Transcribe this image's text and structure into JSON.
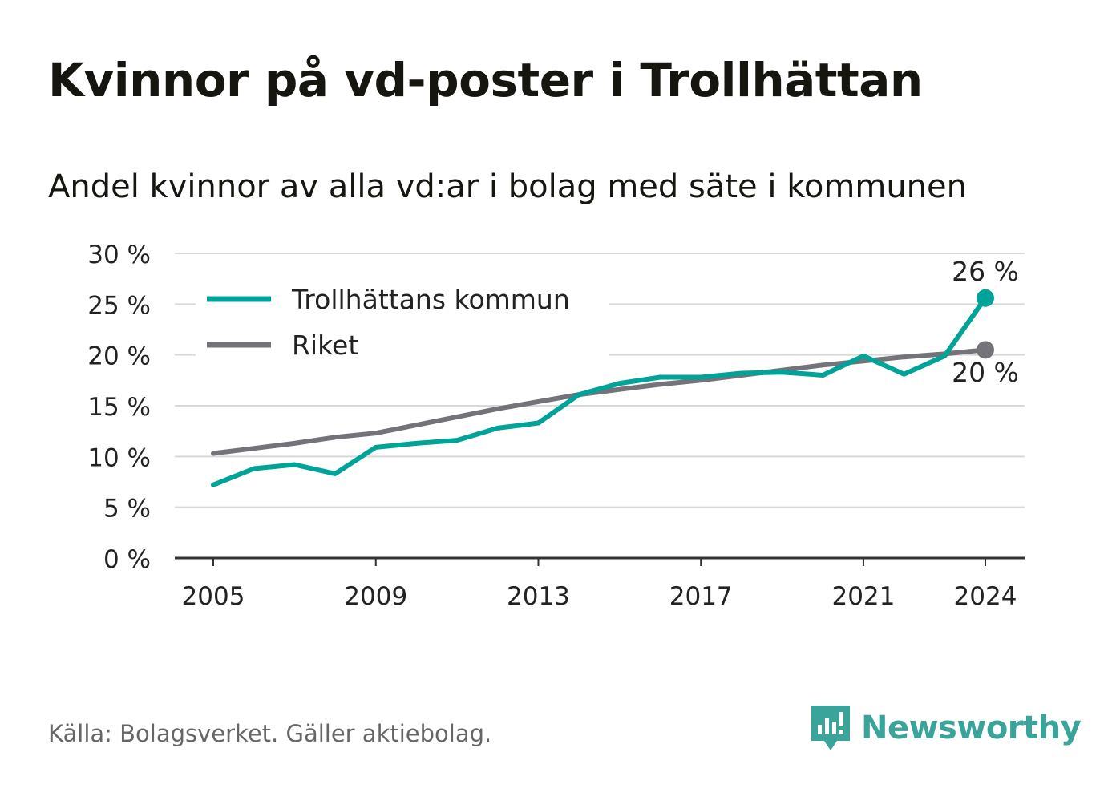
{
  "title": "Kvinnor på vd-poster i Trollhättan",
  "subtitle": "Andel kvinnor av alla vd:ar i bolag med säte i kommunen",
  "source": "Källa: Bolagsverket. Gäller aktiebolag.",
  "brand": "Newsworthy",
  "chart_data": {
    "type": "line",
    "x": [
      2005,
      2006,
      2007,
      2008,
      2009,
      2010,
      2011,
      2012,
      2013,
      2014,
      2015,
      2016,
      2017,
      2018,
      2019,
      2020,
      2021,
      2022,
      2023,
      2024
    ],
    "series": [
      {
        "name": "Trollhättans kommun",
        "color": "#00a398",
        "values": [
          7.2,
          8.8,
          9.2,
          8.3,
          10.9,
          11.3,
          11.6,
          12.8,
          13.3,
          16.1,
          17.2,
          17.8,
          17.8,
          18.2,
          18.3,
          18.0,
          19.9,
          18.1,
          19.9,
          25.6
        ]
      },
      {
        "name": "Riket",
        "color": "#75737a",
        "values": [
          10.3,
          10.8,
          11.3,
          11.9,
          12.3,
          13.1,
          13.9,
          14.7,
          15.4,
          16.1,
          16.6,
          17.1,
          17.5,
          18.0,
          18.5,
          19.0,
          19.4,
          19.8,
          20.1,
          20.5
        ]
      }
    ],
    "end_labels": [
      "26 %",
      "20 %"
    ],
    "yticks": [
      0,
      5,
      10,
      15,
      20,
      25,
      30
    ],
    "ytick_labels": [
      "0 %",
      "5 %",
      "10 %",
      "15 %",
      "20 %",
      "25 %",
      "30 %"
    ],
    "xticks": [
      2005,
      2009,
      2013,
      2017,
      2021,
      2024
    ],
    "xtick_labels": [
      "2005",
      "2009",
      "2013",
      "2017",
      "2021",
      "2024"
    ],
    "ylim": [
      0,
      30
    ],
    "xlim": [
      2005,
      2024
    ],
    "grid": true,
    "legend": "top-left"
  }
}
